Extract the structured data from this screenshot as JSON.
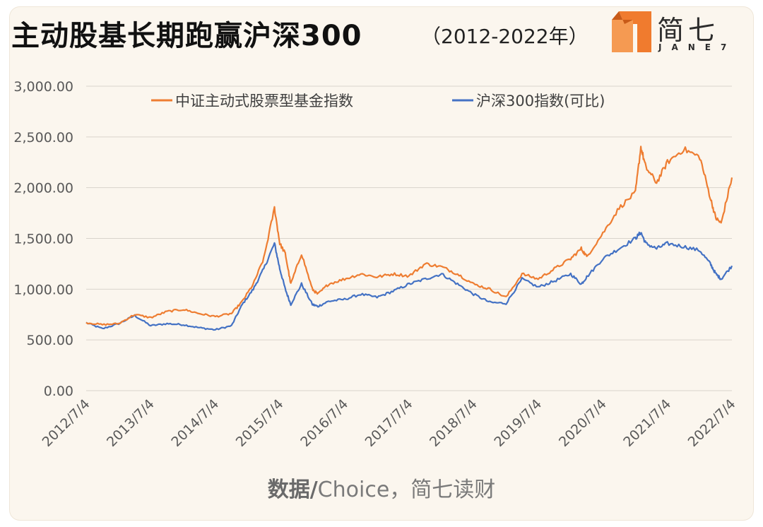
{
  "header": {
    "title": "主动股基长期跑赢沪深300",
    "subtitle": "（2012-2022年）"
  },
  "logo": {
    "text": "简七",
    "subtext": "JANE7",
    "accent_color": "#f07b2e"
  },
  "footer": {
    "source_prefix": "数据/",
    "source_rest": "Choice，简七读财"
  },
  "chart_data": {
    "type": "line",
    "x": [
      "2012/7/4",
      "2012/10/4",
      "2013/1/4",
      "2013/4/4",
      "2013/7/4",
      "2013/10/4",
      "2014/1/4",
      "2014/4/4",
      "2014/7/4",
      "2014/10/4",
      "2014/12/4",
      "2015/2/4",
      "2015/4/4",
      "2015/6/4",
      "2015/7/4",
      "2015/8/4",
      "2015/9/4",
      "2015/11/4",
      "2016/1/4",
      "2016/2/4",
      "2016/4/4",
      "2016/7/4",
      "2016/10/4",
      "2017/1/4",
      "2017/4/4",
      "2017/7/4",
      "2017/10/4",
      "2018/1/4",
      "2018/4/4",
      "2018/7/4",
      "2018/10/4",
      "2019/1/4",
      "2019/4/4",
      "2019/7/4",
      "2019/10/4",
      "2020/1/4",
      "2020/3/4",
      "2020/4/4",
      "2020/7/4",
      "2020/10/4",
      "2021/1/4",
      "2021/2/4",
      "2021/3/4",
      "2021/5/4",
      "2021/7/4",
      "2021/10/4",
      "2022/1/4",
      "2022/3/4",
      "2022/4/4",
      "2022/5/4",
      "2022/7/4"
    ],
    "series": [
      {
        "name": "中证主动式股票型基金指数",
        "color": "#ee7d31",
        "values": [
          670,
          650,
          660,
          750,
          720,
          780,
          800,
          760,
          730,
          760,
          880,
          1050,
          1300,
          1800,
          1450,
          1350,
          1050,
          1350,
          1000,
          950,
          1050,
          1100,
          1150,
          1120,
          1150,
          1130,
          1250,
          1220,
          1150,
          1050,
          1000,
          920,
          1150,
          1100,
          1200,
          1300,
          1400,
          1320,
          1550,
          1800,
          1950,
          2400,
          2200,
          2050,
          2250,
          2380,
          2300,
          1900,
          1700,
          1650,
          2100
        ]
      },
      {
        "name": "沪深300指数(可比)",
        "color": "#4472c4",
        "values": [
          670,
          610,
          660,
          740,
          640,
          660,
          650,
          620,
          600,
          640,
          850,
          1000,
          1200,
          1450,
          1200,
          1000,
          850,
          1050,
          850,
          830,
          880,
          900,
          950,
          920,
          980,
          1050,
          1100,
          1150,
          1050,
          950,
          870,
          860,
          1100,
          1020,
          1080,
          1150,
          1050,
          1120,
          1300,
          1400,
          1500,
          1560,
          1450,
          1400,
          1450,
          1420,
          1380,
          1250,
          1150,
          1100,
          1230
        ]
      }
    ],
    "tick_labels": [
      "2012/7/4",
      "2013/7/4",
      "2014/7/4",
      "2015/7/4",
      "2016/7/4",
      "2017/7/4",
      "2018/7/4",
      "2019/7/4",
      "2020/7/4",
      "2021/7/4",
      "2022/7/4"
    ],
    "y_tick_labels": [
      "0.00",
      "500.00",
      "1,000.00",
      "1,500.00",
      "2,000.00",
      "2,500.00",
      "3,000.00"
    ],
    "ylim": [
      0,
      3000
    ],
    "y_tick_step": 500,
    "grid": true,
    "legend_position": "top"
  }
}
